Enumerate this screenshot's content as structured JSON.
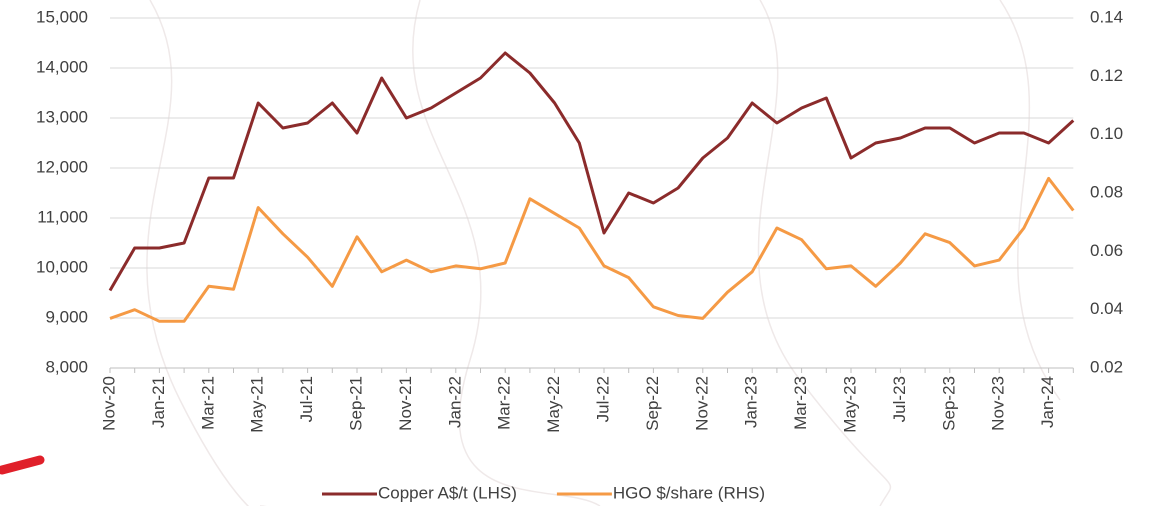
{
  "chart_data": {
    "type": "line",
    "categories": [
      "Nov-20",
      null,
      "Jan-21",
      null,
      "Mar-21",
      null,
      "May-21",
      null,
      "Jul-21",
      null,
      "Sep-21",
      null,
      "Nov-21",
      null,
      "Jan-22",
      null,
      "Mar-22",
      null,
      "May-22",
      null,
      "Jul-22",
      null,
      "Sep-22",
      null,
      "Nov-22",
      null,
      "Jan-23",
      null,
      "Mar-23",
      null,
      "May-23",
      null,
      "Jul-23",
      null,
      "Sep-23",
      null,
      "Nov-23",
      null,
      "Jan-24",
      null
    ],
    "series": [
      {
        "name": "Copper A$/t (LHS)",
        "color": "#8b2b2b",
        "values": [
          9550,
          10400,
          10400,
          10500,
          11800,
          11800,
          13300,
          12800,
          12900,
          13300,
          12700,
          13800,
          13000,
          13200,
          13500,
          13800,
          14300,
          13900,
          13300,
          12500,
          10700,
          11500,
          11300,
          11600,
          12200,
          12600,
          13300,
          12900,
          13200,
          13400,
          12200,
          12500,
          12600,
          12800,
          12800,
          12500,
          12700,
          12700,
          12500,
          12950
        ]
      },
      {
        "name": "HGO $/share (RHS)",
        "color": "#f59a45",
        "axis": "y2",
        "values": [
          0.037,
          0.04,
          0.036,
          0.036,
          0.048,
          0.047,
          0.075,
          0.066,
          0.058,
          0.048,
          0.065,
          0.053,
          0.057,
          0.053,
          0.055,
          0.054,
          0.056,
          0.078,
          0.073,
          0.068,
          0.055,
          0.051,
          0.041,
          0.038,
          0.037,
          0.046,
          0.053,
          0.068,
          0.064,
          0.054,
          0.055,
          0.048,
          0.056,
          0.066,
          0.063,
          0.055,
          0.057,
          0.068,
          0.085,
          0.074
        ]
      }
    ],
    "ylim": [
      8000,
      15000
    ],
    "yticks": [
      {
        "value": 8000,
        "label": "8,000"
      },
      {
        "value": 9000,
        "label": "9,000"
      },
      {
        "value": 10000,
        "label": "10,000"
      },
      {
        "value": 11000,
        "label": "11,000"
      },
      {
        "value": 12000,
        "label": "12,000"
      },
      {
        "value": 13000,
        "label": "13,000"
      },
      {
        "value": 14000,
        "label": "14,000"
      },
      {
        "value": 15000,
        "label": "15,000"
      }
    ],
    "y2lim": [
      0.02,
      0.14
    ],
    "y2ticks": [
      0.02,
      0.04,
      0.06,
      0.08,
      {
        "value": 0.1,
        "label": "0.10"
      },
      0.12,
      0.14
    ],
    "grid": true,
    "legend": "bottom"
  }
}
